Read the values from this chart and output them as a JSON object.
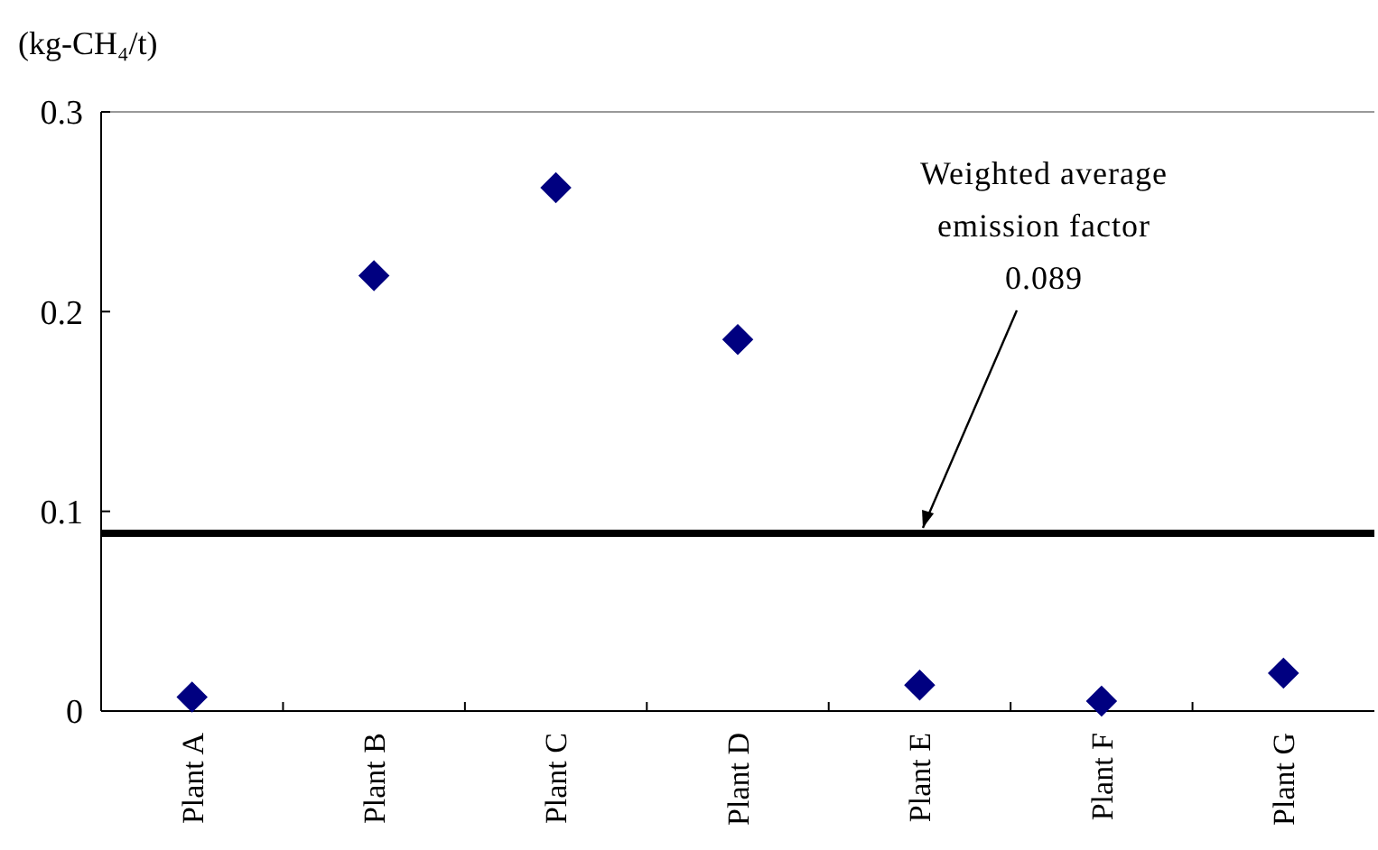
{
  "chart_data": {
    "type": "scatter",
    "ylabel": "(kg-CH₄/t)",
    "categories": [
      "Plant A",
      "Plant B",
      "Plant C",
      "Plant D",
      "Plant E",
      "Plant F",
      "Plant G"
    ],
    "series": [
      {
        "color": "#000080",
        "values": [
          0.007,
          0.218,
          0.262,
          0.186,
          0.013,
          0.005,
          0.019
        ]
      }
    ],
    "marker": "diamond",
    "ylim": [
      0,
      0.3
    ],
    "yticks": [
      0,
      0.1,
      0.2,
      0.3
    ],
    "grid": false,
    "ref_lines": [
      {
        "axis": "y",
        "value": 0.089,
        "label": "Weighted average\nemission factor\n0.089",
        "color": "#000000",
        "line_style": "solid"
      }
    ]
  }
}
